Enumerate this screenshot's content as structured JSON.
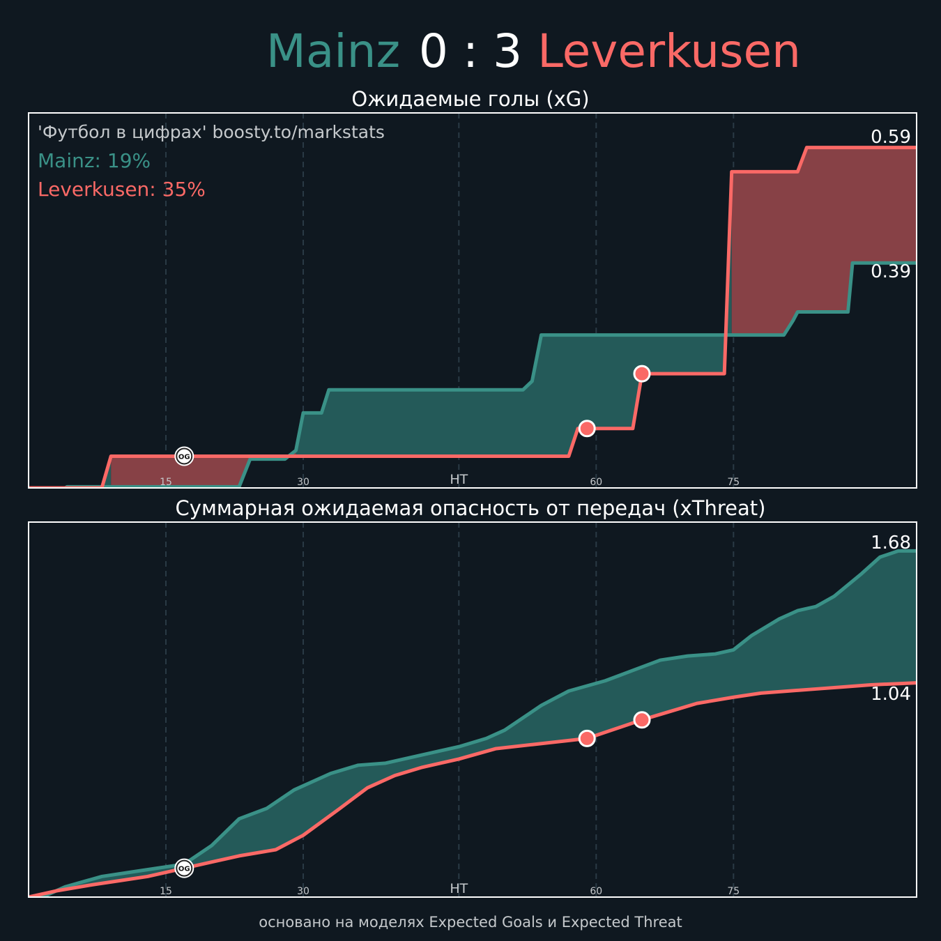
{
  "header": {
    "home_team": "Mainz",
    "score": "0 : 3",
    "away_team": "Leverkusen"
  },
  "colors": {
    "background": "#0f1820",
    "home": "#3a9187",
    "away": "#fa6966",
    "home_fill": "#245a59",
    "away_fill": "#874146",
    "frame": "#ffffff",
    "grid": "#2a3a45"
  },
  "xg_panel": {
    "title": "Ожидаемые голы (xG)",
    "credit": "'Футбол в цифрах' boosty.to/markstats",
    "home_prob_label": "Mainz: 19%",
    "away_prob_label": "Leverkusen: 35%",
    "home_final": "0.39",
    "away_final": "0.59"
  },
  "xt_panel": {
    "title": "Суммарная ожидаемая опасность от передач (xThreat)",
    "home_final": "1.68",
    "away_final": "1.04"
  },
  "ticks": [
    {
      "label": "15",
      "minute": 15
    },
    {
      "label": "30",
      "minute": 30
    },
    {
      "label": "HT",
      "minute": 47
    },
    {
      "label": "60",
      "minute": 62
    },
    {
      "label": "75",
      "minute": 77
    }
  ],
  "goal_badge": "OG",
  "footer": "основано на моделях Expected Goals и Expected Threat",
  "chart_data": [
    {
      "type": "area",
      "title": "Ожидаемые голы (xG)",
      "xlim": [
        0,
        97
      ],
      "ylim": [
        0,
        0.65
      ],
      "series": [
        {
          "name": "Mainz",
          "points": [
            [
              0,
              0
            ],
            [
              4,
              0
            ],
            [
              4.2,
              0.002
            ],
            [
              8,
              0.002
            ],
            [
              23,
              0.002
            ],
            [
              24.2,
              0.05
            ],
            [
              28,
              0.05
            ],
            [
              29.2,
              0.065
            ],
            [
              30,
              0.13
            ],
            [
              32,
              0.13
            ],
            [
              32.8,
              0.17
            ],
            [
              54,
              0.17
            ],
            [
              55,
              0.185
            ],
            [
              56,
              0.265
            ],
            [
              76,
              0.265
            ],
            [
              77,
              0.265
            ],
            [
              82.5,
              0.265
            ],
            [
              83.5,
              0.29
            ],
            [
              84,
              0.305
            ],
            [
              89.5,
              0.305
            ],
            [
              90,
              0.39
            ],
            [
              97,
              0.39
            ]
          ]
        },
        {
          "name": "Leverkusen",
          "points": [
            [
              0,
              0
            ],
            [
              8,
              0
            ],
            [
              9,
              0.055
            ],
            [
              30,
              0.055
            ],
            [
              59,
              0.055
            ],
            [
              60,
              0.103
            ],
            [
              66,
              0.103
            ],
            [
              67,
              0.198
            ],
            [
              76,
              0.198
            ],
            [
              76.8,
              0.548
            ],
            [
              84,
              0.548
            ],
            [
              85,
              0.59
            ],
            [
              97,
              0.59
            ]
          ]
        }
      ],
      "goals": [
        {
          "team": "Leverkusen",
          "minute": 17,
          "value": 0.055,
          "own_goal": true
        },
        {
          "team": "Leverkusen",
          "minute": 61,
          "value": 0.103,
          "own_goal": false
        },
        {
          "team": "Leverkusen",
          "minute": 67,
          "value": 0.198,
          "own_goal": false
        }
      ]
    },
    {
      "type": "area",
      "title": "Суммарная ожидаемая опасность от передач (xThreat)",
      "xlim": [
        0,
        97
      ],
      "ylim": [
        0,
        1.82
      ],
      "series": [
        {
          "name": "Mainz",
          "points": [
            [
              0,
              0
            ],
            [
              2,
              0.01
            ],
            [
              4,
              0.05
            ],
            [
              8,
              0.1
            ],
            [
              11,
              0.12
            ],
            [
              14,
              0.14
            ],
            [
              17,
              0.16
            ],
            [
              20,
              0.25
            ],
            [
              23,
              0.38
            ],
            [
              26,
              0.43
            ],
            [
              27,
              0.46
            ],
            [
              29,
              0.52
            ],
            [
              33,
              0.6
            ],
            [
              36,
              0.64
            ],
            [
              39,
              0.65
            ],
            [
              42,
              0.68
            ],
            [
              45,
              0.71
            ],
            [
              47,
              0.73
            ],
            [
              50,
              0.77
            ],
            [
              52,
              0.81
            ],
            [
              56,
              0.93
            ],
            [
              59,
              1.0
            ],
            [
              63,
              1.05
            ],
            [
              66,
              1.1
            ],
            [
              69,
              1.15
            ],
            [
              72,
              1.17
            ],
            [
              75,
              1.18
            ],
            [
              77,
              1.2
            ],
            [
              79,
              1.27
            ],
            [
              82,
              1.35
            ],
            [
              84,
              1.39
            ],
            [
              86,
              1.41
            ],
            [
              88,
              1.46
            ],
            [
              91,
              1.57
            ],
            [
              93,
              1.65
            ],
            [
              95,
              1.68
            ],
            [
              97,
              1.68
            ]
          ]
        },
        {
          "name": "Leverkusen",
          "points": [
            [
              0,
              0
            ],
            [
              3,
              0.03
            ],
            [
              7,
              0.06
            ],
            [
              10,
              0.08
            ],
            [
              13,
              0.1
            ],
            [
              17,
              0.14
            ],
            [
              20,
              0.17
            ],
            [
              23,
              0.2
            ],
            [
              27,
              0.23
            ],
            [
              30,
              0.3
            ],
            [
              34,
              0.43
            ],
            [
              37,
              0.53
            ],
            [
              40,
              0.59
            ],
            [
              43,
              0.63
            ],
            [
              47,
              0.67
            ],
            [
              51,
              0.72
            ],
            [
              55,
              0.74
            ],
            [
              59,
              0.76
            ],
            [
              61,
              0.77
            ],
            [
              63,
              0.8
            ],
            [
              67,
              0.86
            ],
            [
              70,
              0.9
            ],
            [
              73,
              0.94
            ],
            [
              77,
              0.97
            ],
            [
              80,
              0.99
            ],
            [
              83,
              1.0
            ],
            [
              86,
              1.01
            ],
            [
              89,
              1.02
            ],
            [
              92,
              1.03
            ],
            [
              97,
              1.04
            ]
          ]
        }
      ],
      "goals": [
        {
          "team": "Leverkusen",
          "minute": 17,
          "value": 0.14,
          "own_goal": true
        },
        {
          "team": "Leverkusen",
          "minute": 61,
          "value": 0.77,
          "own_goal": false
        },
        {
          "team": "Leverkusen",
          "minute": 67,
          "value": 0.86,
          "own_goal": false
        }
      ]
    }
  ]
}
